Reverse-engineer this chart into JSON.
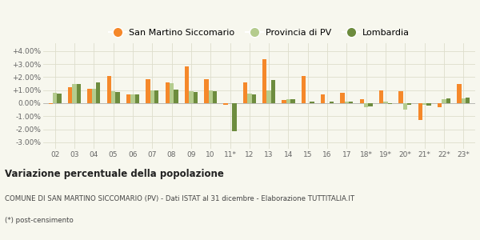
{
  "years": [
    "02",
    "03",
    "04",
    "05",
    "06",
    "07",
    "08",
    "09",
    "10",
    "11*",
    "12",
    "13",
    "14",
    "15",
    "16",
    "17",
    "18*",
    "19*",
    "20*",
    "21*",
    "22*",
    "23*"
  ],
  "san_martino": [
    -0.05,
    1.2,
    1.1,
    2.1,
    0.65,
    1.85,
    1.6,
    2.8,
    1.85,
    -0.1,
    1.6,
    3.35,
    0.25,
    2.1,
    0.7,
    0.8,
    0.28,
    1.0,
    0.9,
    -1.3,
    -0.3,
    1.5
  ],
  "provincia_pv": [
    0.8,
    1.45,
    1.1,
    0.9,
    0.65,
    1.0,
    1.55,
    0.9,
    1.0,
    0.0,
    0.75,
    1.0,
    0.3,
    0.0,
    0.0,
    0.1,
    -0.3,
    0.1,
    -0.5,
    -0.15,
    0.3,
    0.35
  ],
  "lombardia": [
    0.75,
    1.5,
    1.6,
    0.85,
    0.7,
    1.0,
    1.05,
    0.85,
    0.9,
    -2.15,
    0.7,
    1.8,
    0.3,
    0.15,
    0.1,
    0.1,
    -0.25,
    -0.05,
    -0.15,
    -0.2,
    0.35,
    0.4
  ],
  "color_san_martino": "#f5882a",
  "color_provincia": "#b5cc8e",
  "color_lombardia": "#6d8c3e",
  "ylim_min": -3.5,
  "ylim_max": 4.6,
  "yticks": [
    -3.0,
    -2.0,
    -1.0,
    0.0,
    1.0,
    2.0,
    3.0,
    4.0
  ],
  "ytick_labels": [
    "-3.00%",
    "-2.00%",
    "-1.00%",
    "0.00%",
    "+1.00%",
    "+2.00%",
    "+3.00%",
    "+4.00%"
  ],
  "legend_labels": [
    "San Martino Siccomario",
    "Provincia di PV",
    "Lombardia"
  ],
  "title": "Variazione percentuale della popolazione",
  "subtitle2": "COMUNE DI SAN MARTINO SICCOMARIO (PV) - Dati ISTAT al 31 dicembre - Elaborazione TUTTITALIA.IT",
  "subtitle3": "(*) post-censimento",
  "background_color": "#f7f7ee",
  "grid_color": "#ddddcc"
}
